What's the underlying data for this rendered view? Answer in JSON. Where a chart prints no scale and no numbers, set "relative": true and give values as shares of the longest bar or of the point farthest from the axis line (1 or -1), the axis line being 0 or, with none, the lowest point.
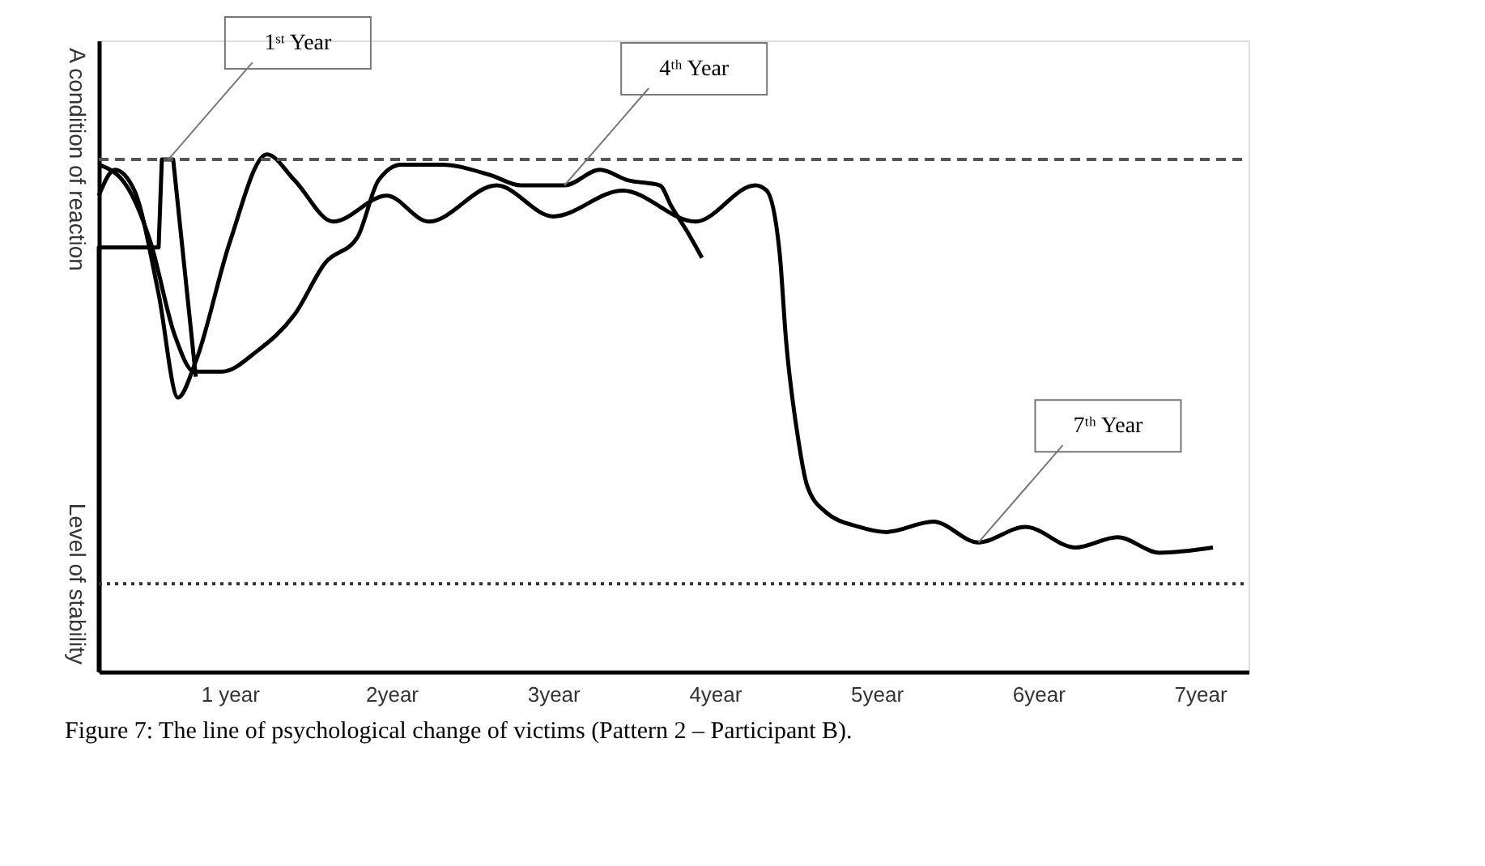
{
  "chart_data": {
    "type": "line",
    "relative": true,
    "xlim": [
      0.19,
      7.3
    ],
    "xticks": [
      {
        "value": 1,
        "label": "1 year"
      },
      {
        "value": 2,
        "label": "2year"
      },
      {
        "value": 3,
        "label": "3year"
      },
      {
        "value": 4,
        "label": "4year"
      },
      {
        "value": 5,
        "label": "5year"
      },
      {
        "value": 6,
        "label": "6year"
      },
      {
        "value": 7,
        "label": "7year"
      }
    ],
    "series": [
      {
        "color": "#000000",
        "x": [
          0.19,
          0.19,
          0.56,
          0.58,
          0.65,
          0.79
        ],
        "values": [
          0,
          0.82,
          0.82,
          0.99,
          0.99,
          0.57
        ]
      },
      {
        "color": "#000000",
        "x": [
          0.19,
          0.36,
          0.51,
          0.66,
          0.78,
          0.95,
          1.17,
          1.4,
          1.59,
          1.79,
          1.92,
          2.06,
          2.31,
          2.61,
          2.8,
          3.07,
          3.29,
          3.46,
          3.66,
          3.73,
          3.83,
          3.92
        ],
        "values": [
          0.98,
          0.94,
          0.83,
          0.65,
          0.58,
          0.58,
          0.62,
          0.69,
          0.79,
          0.84,
          0.95,
          0.98,
          0.98,
          0.96,
          0.94,
          0.94,
          0.97,
          0.95,
          0.94,
          0.9,
          0.85,
          0.8
        ]
      },
      {
        "color": "#000000",
        "x": [
          0.19,
          0.29,
          0.41,
          0.56,
          0.68,
          0.79,
          1.0,
          1.23,
          1.4,
          1.64,
          1.97,
          2.23,
          2.65,
          3.0,
          3.43,
          3.88,
          4.25,
          4.32,
          4.4,
          4.44,
          4.51,
          4.57,
          4.68,
          4.89,
          5.06,
          5.35,
          5.63,
          5.92,
          6.23,
          6.49,
          6.75,
          7.08
        ],
        "values": [
          0.92,
          0.97,
          0.93,
          0.73,
          0.53,
          0.6,
          0.83,
          1.0,
          0.95,
          0.87,
          0.92,
          0.87,
          0.94,
          0.88,
          0.93,
          0.87,
          0.94,
          0.93,
          0.81,
          0.64,
          0.46,
          0.36,
          0.31,
          0.28,
          0.27,
          0.29,
          0.25,
          0.28,
          0.24,
          0.26,
          0.23,
          0.24
        ]
      }
    ],
    "ref_lines": [
      {
        "axis": "y",
        "value": 0.99,
        "label": "A condition of reaction",
        "line_style": "dashed",
        "color": "#555555"
      },
      {
        "axis": "y",
        "value": 0.17,
        "label": "Level of stability",
        "line_style": "dotted",
        "color": "#333333"
      }
    ],
    "annotations": [
      {
        "text": "1ˢᵗ Year",
        "x": 0.62,
        "y": 0.99
      },
      {
        "text": "4ᵗʰ Year",
        "x": 3.07,
        "y": 0.94
      },
      {
        "text": "7ᵗʰ Year",
        "x": 5.63,
        "y": 0.25
      },
      "Figure 7: The line of psychological change of victims (Pattern 2 – Participant B)."
    ],
    "grid": false,
    "marker": "none",
    "line_style": "solid"
  }
}
